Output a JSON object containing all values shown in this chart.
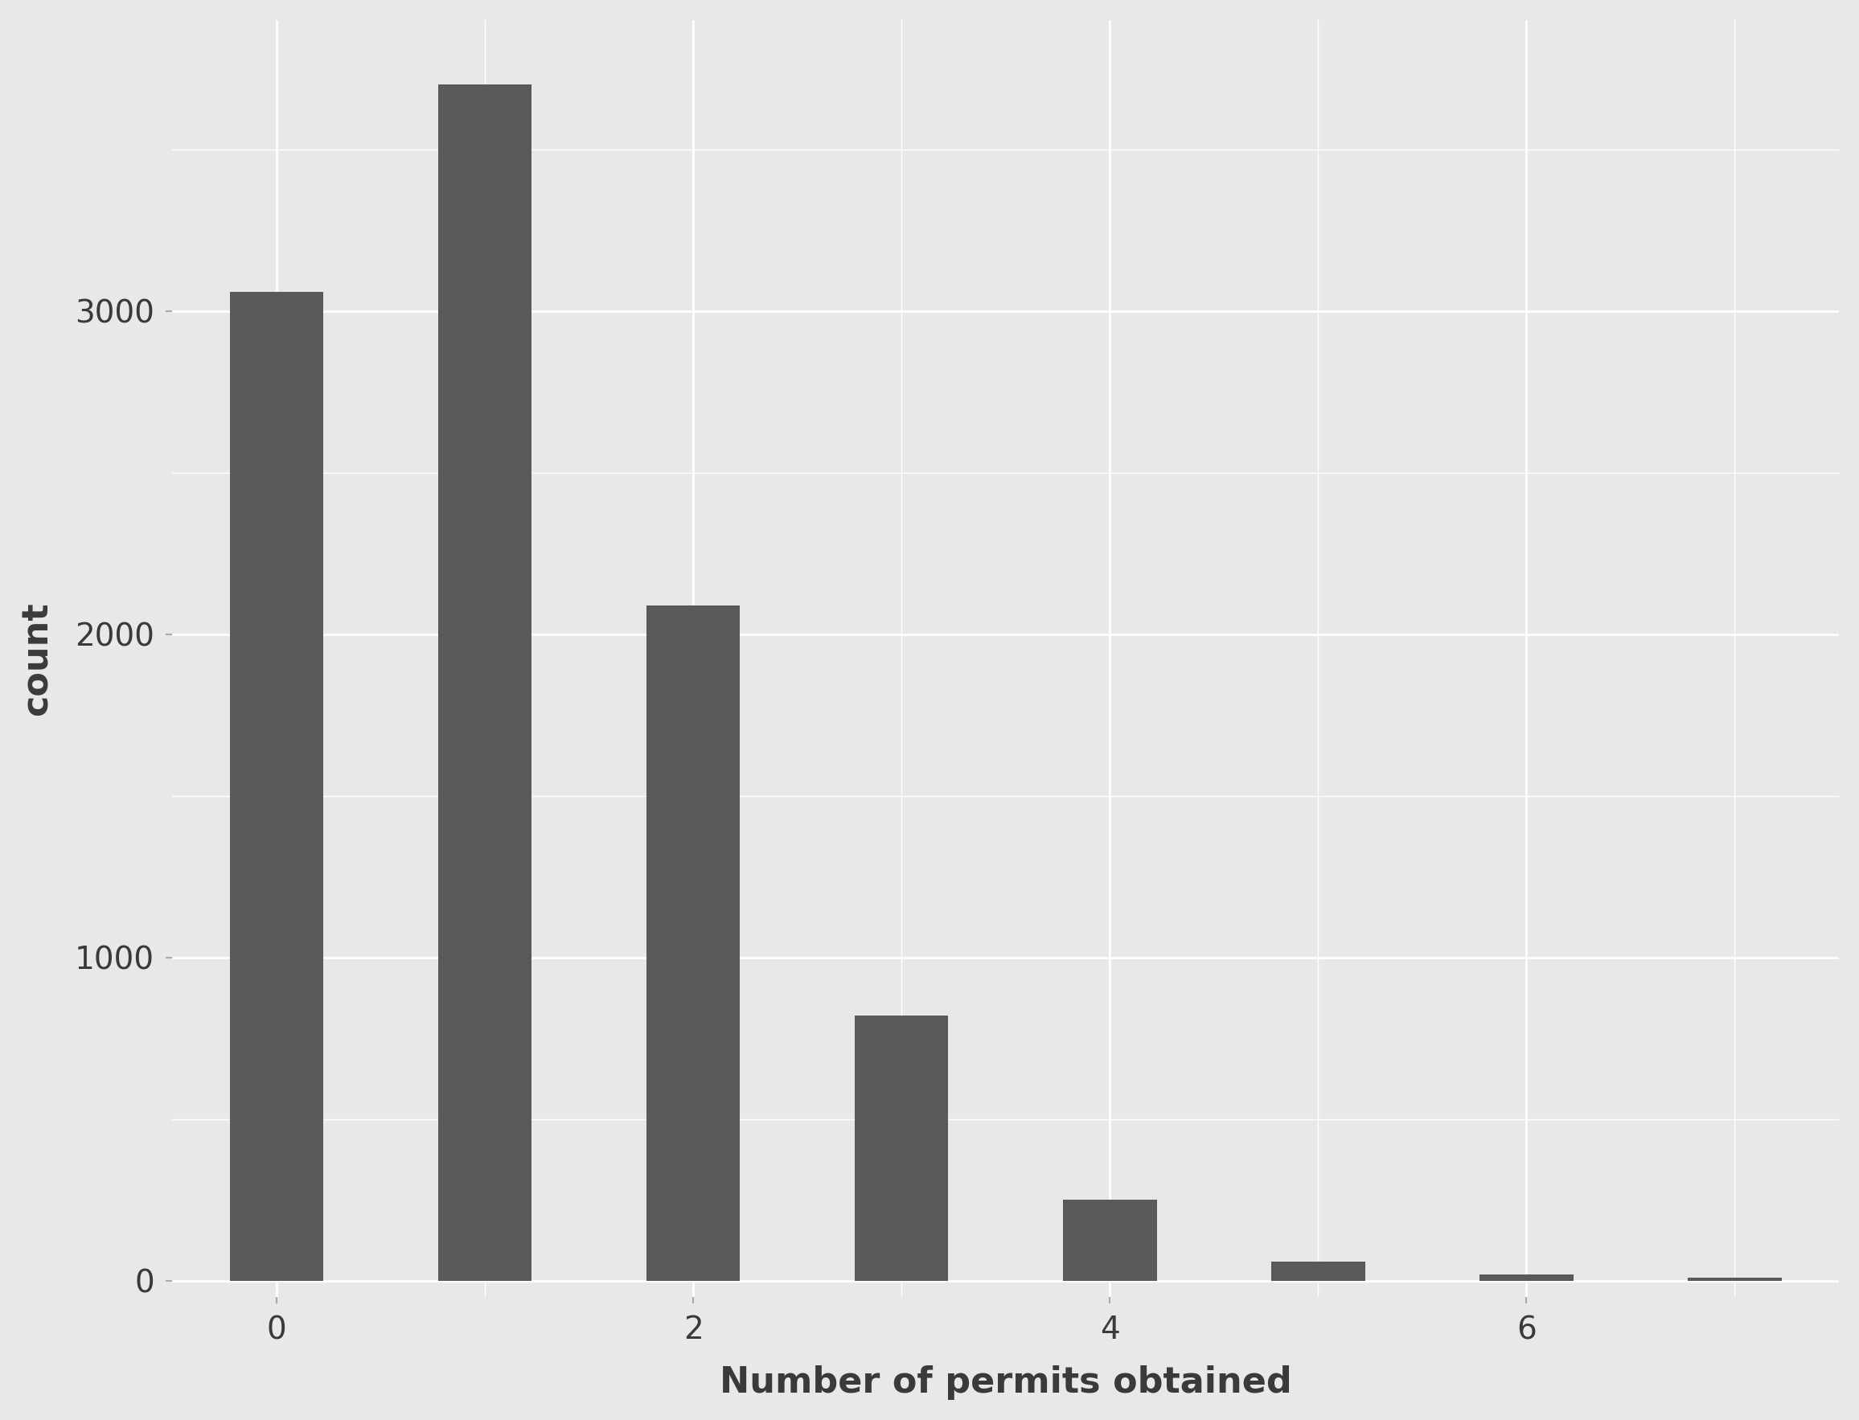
{
  "bar_values": [
    3060,
    3700,
    2090,
    820,
    250,
    60,
    20,
    8
  ],
  "bar_positions": [
    0,
    1,
    2,
    3,
    4,
    5,
    6,
    7
  ],
  "bar_color": "#595959",
  "bar_width": 0.45,
  "background_color": "#e8e8e8",
  "panel_color": "#e8e8e8",
  "grid_color": "#ffffff",
  "xlabel": "Number of permits obtained",
  "ylabel": "count",
  "xticks": [
    0,
    2,
    4,
    6
  ],
  "yticks": [
    0,
    1000,
    2000,
    3000
  ],
  "xlim": [
    -0.5,
    7.5
  ],
  "ylim": [
    -50,
    3900
  ],
  "xlabel_fontsize": 32,
  "ylabel_fontsize": 32,
  "tick_fontsize": 28
}
